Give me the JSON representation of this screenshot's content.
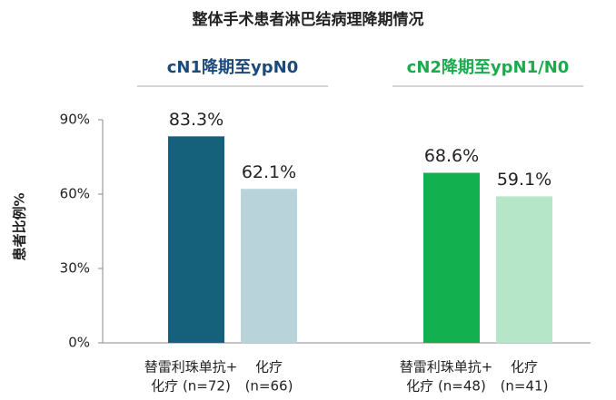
{
  "chart_data": {
    "type": "grouped-bar",
    "title": "整体手术患者淋巴结病理降期情况",
    "y_label": "患者比例%",
    "ylim": [
      0,
      90
    ],
    "yticks": [
      {
        "value": 0,
        "label": "0%"
      },
      {
        "value": 30,
        "label": "30%"
      },
      {
        "value": 60,
        "label": "60%"
      },
      {
        "value": 90,
        "label": "90%"
      }
    ],
    "groups": [
      {
        "name": "cN1降期至ypN0",
        "name_color": "#1b4a7a",
        "categories": [
          [
            "替雷利珠单抗+",
            "化疗 (n=72)"
          ],
          [
            "化疗",
            "(n=66)"
          ]
        ],
        "values": [
          83.3,
          62.1
        ],
        "value_labels": [
          "83.3%",
          "62.1%"
        ],
        "colors": [
          "#15607a",
          "#b9d3da"
        ]
      },
      {
        "name": "cN2降期至ypN1/N0",
        "name_color": "#1aab4c",
        "categories": [
          [
            "替雷利珠单抗+",
            "化疗 (n=48)"
          ],
          [
            "化疗",
            "(n=41)"
          ]
        ],
        "values": [
          68.6,
          59.1
        ],
        "value_labels": [
          "68.6%",
          "59.1%"
        ],
        "colors": [
          "#13b04f",
          "#b5e6c8"
        ]
      }
    ]
  }
}
